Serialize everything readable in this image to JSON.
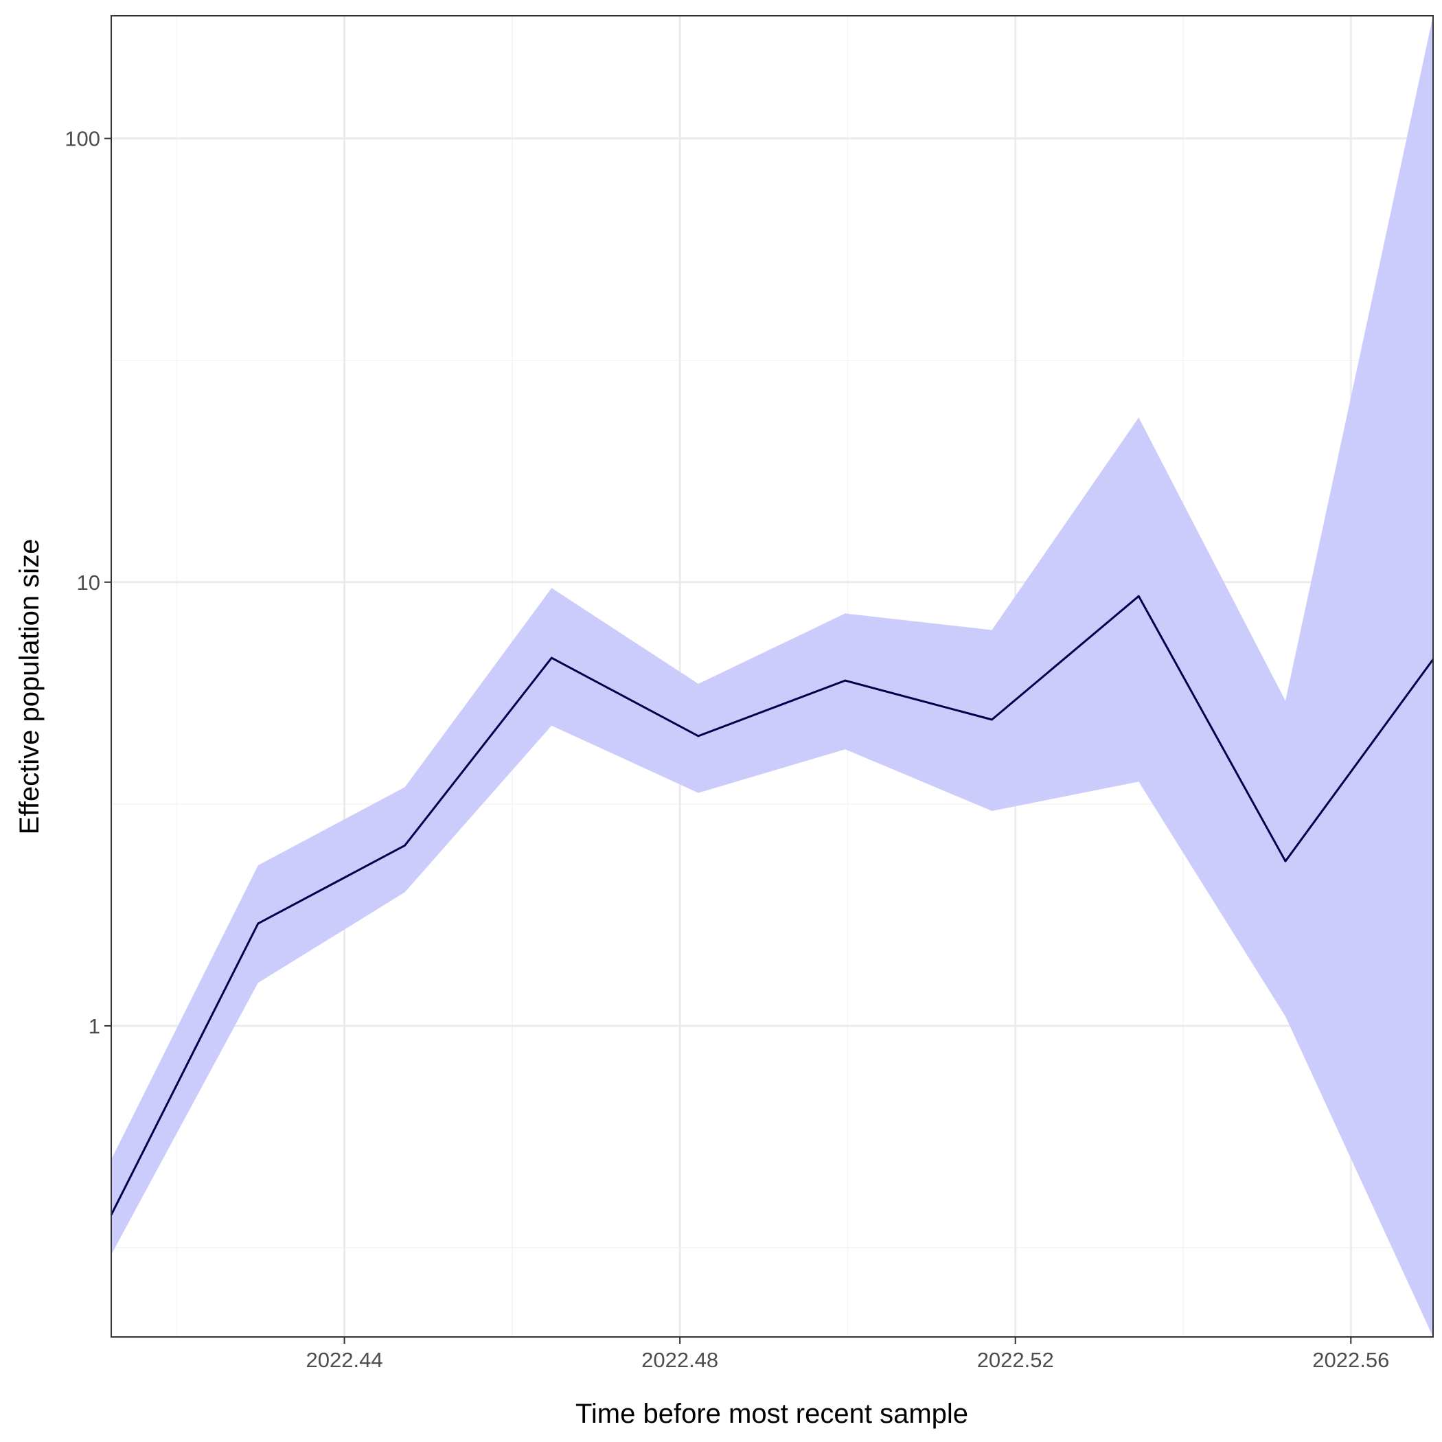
{
  "chart_data": {
    "type": "line",
    "title": "",
    "xlabel": "Time before most recent sample",
    "ylabel": "Effective population size",
    "xlim": [
      2022.4122,
      2022.5698
    ],
    "ylim": [
      0.199,
      189
    ],
    "yscale": "log",
    "grid": true,
    "legend": "none",
    "x_ticks": [
      2022.44,
      2022.48,
      2022.52,
      2022.56
    ],
    "x_tick_labels": [
      "2022.44",
      "2022.48",
      "2022.52",
      "2022.56"
    ],
    "y_ticks": [
      1,
      10,
      100
    ],
    "y_tick_labels": [
      "1",
      "10",
      "100"
    ],
    "x": [
      2022.4122,
      2022.4297,
      2022.4472,
      2022.4647,
      2022.4822,
      2022.4997,
      2022.5172,
      2022.5347,
      2022.5522,
      2022.5698
    ],
    "series": [
      {
        "role": "line",
        "values": [
          0.375,
          1.7,
          2.55,
          6.75,
          4.5,
          6.0,
          4.9,
          9.3,
          2.35,
          6.7
        ]
      },
      {
        "role": "band_upper",
        "values": [
          0.5,
          2.3,
          3.45,
          9.7,
          5.9,
          8.5,
          7.8,
          23.5,
          5.4,
          189
        ]
      },
      {
        "role": "band_lower",
        "values": [
          0.305,
          1.25,
          2.0,
          4.75,
          3.35,
          4.2,
          3.05,
          3.55,
          1.05,
          0.199
        ]
      }
    ],
    "colors": {
      "line": "#00004d",
      "band": "#ccccfc",
      "grid_major": "#ebebeb",
      "grid_minor": "#f4f4f4",
      "frame": "#333333"
    }
  }
}
